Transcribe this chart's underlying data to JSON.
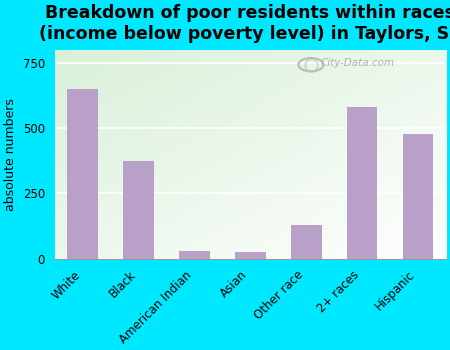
{
  "categories": [
    "White",
    "Black",
    "American Indian",
    "Asian",
    "Other race",
    "2+ races",
    "Hispanic"
  ],
  "values": [
    650,
    375,
    30,
    25,
    130,
    580,
    480
  ],
  "bar_color": "#b8a0c8",
  "title": "Breakdown of poor residents within races\n(income below poverty level) in Taylors, SC",
  "ylabel": "absolute numbers",
  "yticks": [
    0,
    250,
    500,
    750
  ],
  "ylim": [
    0,
    800
  ],
  "bg_grad_left": "#d8edd8",
  "bg_grad_right": "#f5faf0",
  "outer_bg": "#00e8ff",
  "watermark": "City-Data.com",
  "title_fontsize": 12.5,
  "ylabel_fontsize": 9,
  "tick_fontsize": 8.5
}
